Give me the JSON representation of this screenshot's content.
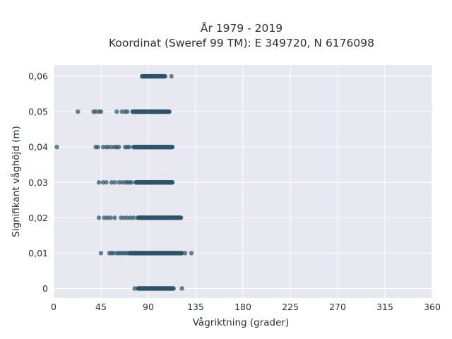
{
  "chart_data": {
    "type": "scatter",
    "title": "År 1979 - 2019",
    "subtitle": "Koordinat (Sweref 99 TM): E 349720, N 6176098",
    "xlabel": "Vågriktning (grader)",
    "ylabel": "Signifikant våghöjd (m)",
    "xlim": [
      0,
      360
    ],
    "ylim": [
      -0.0027,
      0.0632
    ],
    "x_ticks": [
      0,
      45,
      90,
      135,
      180,
      225,
      270,
      315,
      360
    ],
    "x_tick_labels": [
      "0",
      "45",
      "90",
      "135",
      "180",
      "225",
      "270",
      "315",
      "360"
    ],
    "y_ticks": [
      0,
      0.01,
      0.02,
      0.03,
      0.04,
      0.05,
      0.06
    ],
    "y_tick_labels": [
      "0",
      "0,01",
      "0,02",
      "0,03",
      "0,04",
      "0,05",
      "0,06"
    ],
    "grid": true,
    "marker_color": "#2e5468",
    "background_color": "#e8e8f0",
    "points_description": "dense horizontal bands at discrete wave heights; dense range and sparse outliers per level",
    "levels": [
      {
        "y": 0.06,
        "dense_x": [
          84,
          106
        ],
        "sparse_x": [
          112
        ]
      },
      {
        "y": 0.05,
        "dense_x": [
          75,
          110
        ],
        "sparse_x": [
          23,
          38,
          40,
          43,
          45,
          60,
          65,
          68,
          70
        ]
      },
      {
        "y": 0.04,
        "dense_x": [
          76,
          113
        ],
        "sparse_x": [
          3,
          40,
          42,
          47,
          50,
          52,
          55,
          58,
          60,
          62,
          68,
          70,
          72
        ]
      },
      {
        "y": 0.03,
        "dense_x": [
          78,
          113
        ],
        "sparse_x": [
          43,
          47,
          50,
          55,
          58,
          62,
          65,
          68,
          70,
          72,
          74
        ]
      },
      {
        "y": 0.02,
        "dense_x": [
          80,
          121
        ],
        "sparse_x": [
          43,
          48,
          51,
          54,
          58,
          64,
          67,
          70,
          73,
          76
        ]
      },
      {
        "y": 0.01,
        "dense_x": [
          72,
          122
        ],
        "sparse_x": [
          45,
          53,
          55,
          57,
          60,
          62,
          64,
          66,
          68,
          70,
          125,
          131
        ]
      },
      {
        "y": 0.0,
        "dense_x": [
          80,
          114
        ],
        "sparse_x": [
          77,
          122
        ]
      }
    ]
  }
}
